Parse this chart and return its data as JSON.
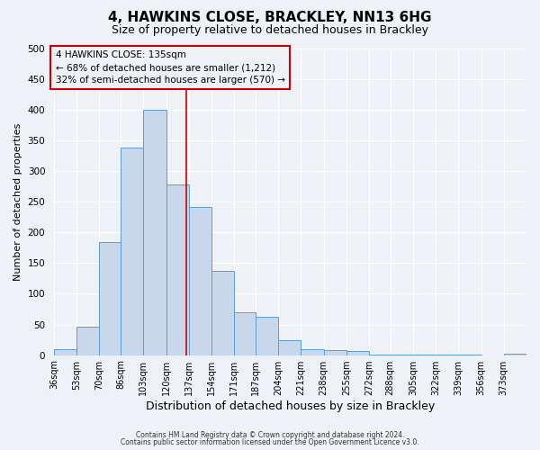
{
  "title": "4, HAWKINS CLOSE, BRACKLEY, NN13 6HG",
  "subtitle": "Size of property relative to detached houses in Brackley",
  "xlabel": "Distribution of detached houses by size in Brackley",
  "ylabel": "Number of detached properties",
  "bin_labels": [
    "36sqm",
    "53sqm",
    "70sqm",
    "86sqm",
    "103sqm",
    "120sqm",
    "137sqm",
    "154sqm",
    "171sqm",
    "187sqm",
    "204sqm",
    "221sqm",
    "238sqm",
    "255sqm",
    "272sqm",
    "288sqm",
    "305sqm",
    "322sqm",
    "339sqm",
    "356sqm",
    "373sqm"
  ],
  "bin_edges": [
    36,
    53,
    70,
    86,
    103,
    120,
    137,
    154,
    171,
    187,
    204,
    221,
    238,
    255,
    272,
    288,
    305,
    322,
    339,
    356,
    373,
    390
  ],
  "bar_heights": [
    10,
    47,
    185,
    338,
    400,
    278,
    242,
    137,
    70,
    63,
    25,
    10,
    8,
    7,
    1,
    1,
    1,
    1,
    1,
    0,
    2
  ],
  "bar_color": "#c8d8ea",
  "bar_edge_color": "#5b9bd5",
  "property_line_x": 135,
  "property_line_color": "#cc0000",
  "annotation_line1": "4 HAWKINS CLOSE: 135sqm",
  "annotation_line2": "← 68% of detached houses are smaller (1,212)",
  "annotation_line3": "32% of semi-detached houses are larger (570) →",
  "annotation_box_edgecolor": "#cc0000",
  "ylim": [
    0,
    500
  ],
  "yticks": [
    0,
    50,
    100,
    150,
    200,
    250,
    300,
    350,
    400,
    450,
    500
  ],
  "background_color": "#eef2f7",
  "grid_color": "#ffffff",
  "footer_line1": "Contains HM Land Registry data © Crown copyright and database right 2024.",
  "footer_line2": "Contains public sector information licensed under the Open Government Licence v3.0."
}
